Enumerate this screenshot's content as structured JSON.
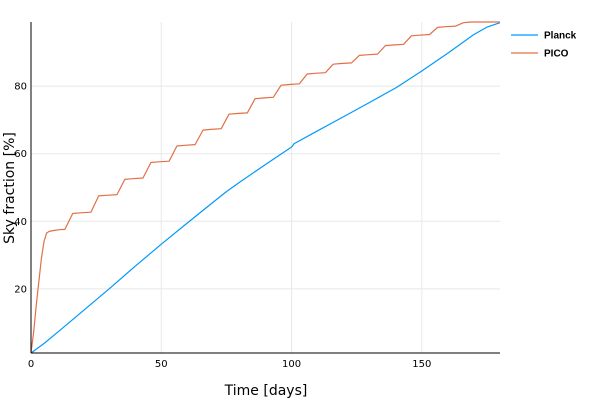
{
  "chart_data": {
    "type": "line",
    "xlabel": "Time [days]",
    "ylabel": "Sky fraction [%]",
    "xlim": [
      0,
      180
    ],
    "ylim": [
      1,
      99
    ],
    "xticks": [
      0,
      50,
      100,
      150
    ],
    "yticks": [
      20,
      40,
      60,
      80
    ],
    "grid": true,
    "legend_position": "top-right, outside plot",
    "series": [
      {
        "name": "Planck",
        "color": "#009AFA",
        "x": [
          0,
          5,
          10,
          20,
          30,
          40,
          50,
          60,
          70,
          75,
          80,
          90,
          100,
          101,
          110,
          120,
          130,
          140,
          150,
          160,
          170,
          175,
          180
        ],
        "y": [
          1,
          3.8,
          7,
          13.5,
          20,
          26.7,
          33.2,
          39.5,
          45.7,
          48.8,
          51.5,
          56.8,
          62,
          63,
          66.8,
          71,
          75.2,
          79.5,
          84.5,
          89.8,
          95.3,
          97.5,
          98.8
        ]
      },
      {
        "name": "PICO",
        "color": "#E26F46",
        "x": [
          0,
          1,
          2,
          3,
          4,
          5,
          6,
          7,
          9,
          11,
          13,
          16,
          19,
          23,
          26,
          29,
          33,
          36,
          39,
          43,
          46,
          49,
          53,
          56,
          59,
          63,
          66,
          69,
          73,
          76,
          79,
          83,
          86,
          89,
          93,
          96,
          99,
          103,
          106,
          109,
          113,
          116,
          119,
          123,
          126,
          129,
          133,
          136,
          139,
          143,
          146,
          149,
          153,
          156,
          159,
          163,
          166,
          169,
          172,
          175,
          180
        ],
        "y": [
          1,
          7,
          15,
          22,
          29,
          34,
          36.5,
          37,
          37.3,
          37.5,
          37.6,
          42.3,
          42.5,
          42.7,
          47.5,
          47.7,
          47.9,
          52.4,
          52.6,
          52.8,
          57.4,
          57.6,
          57.8,
          62.3,
          62.5,
          62.7,
          67,
          67.2,
          67.4,
          71.7,
          71.9,
          72.1,
          76.3,
          76.5,
          76.7,
          80.3,
          80.5,
          80.7,
          83.6,
          83.8,
          84,
          86.5,
          86.7,
          86.9,
          89.1,
          89.3,
          89.5,
          92,
          92.2,
          92.4,
          94.9,
          95.1,
          95.3,
          97.4,
          97.6,
          97.8,
          98.8,
          99,
          99,
          99,
          99
        ]
      }
    ]
  }
}
